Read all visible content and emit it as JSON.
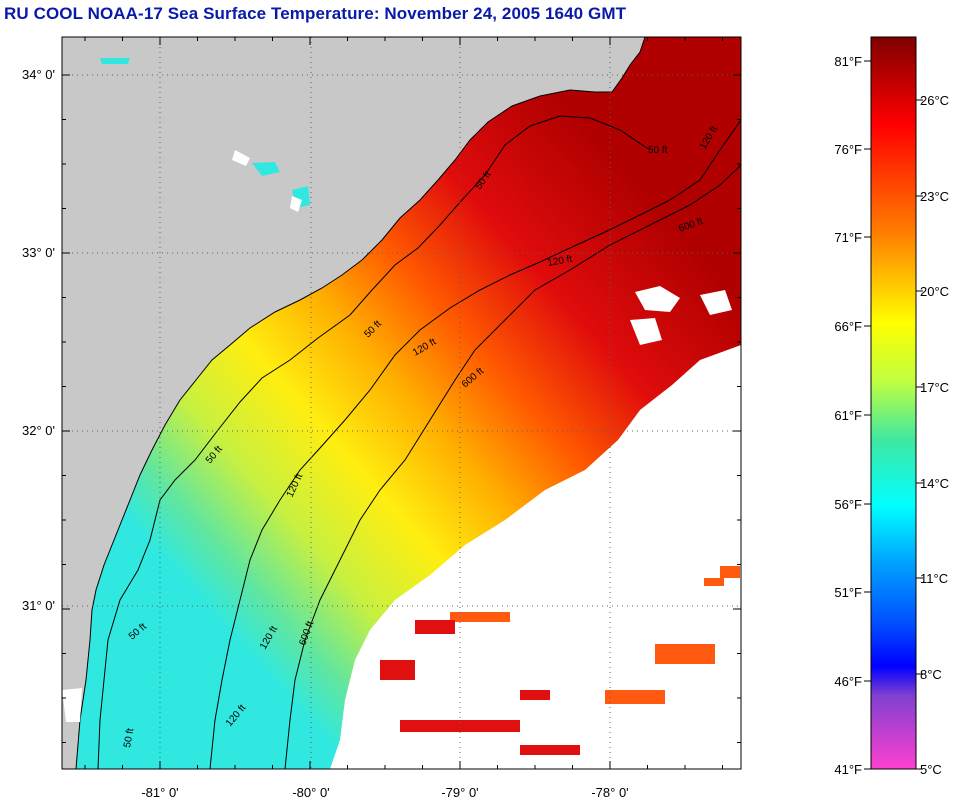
{
  "title": "RU COOL  NOAA-17  Sea Surface Temperature:  November 24, 2005 1640 GMT",
  "map": {
    "lat_labels": [
      "34° 0'",
      "33° 0'",
      "32° 0'",
      "31° 0'"
    ],
    "lon_labels": [
      "-81° 0'",
      "-80° 0'",
      "-79° 0'",
      "-78° 0'"
    ],
    "contour_labels": [
      "50 ft",
      "50 ft",
      "50 ft",
      "50 ft",
      "50 ft",
      "50 ft",
      "120 ft",
      "120 ft",
      "120 ft",
      "120 ft",
      "120 ft",
      "120 ft",
      "600 ft",
      "600 ft",
      "600 ft"
    ],
    "colors": {
      "land": "#c8c8c8",
      "no_data": "#ffffff",
      "warm": "#e01010",
      "cool": "#40e0d0"
    }
  },
  "colorbar": {
    "fahrenheit_labels": [
      "81°F",
      "76°F",
      "71°F",
      "66°F",
      "61°F",
      "56°F",
      "51°F",
      "46°F",
      "41°F"
    ],
    "celsius_labels": [
      "26°C",
      "23°C",
      "20°C",
      "17°C",
      "14°C",
      "11°C",
      "8°C",
      "5°C"
    ]
  }
}
